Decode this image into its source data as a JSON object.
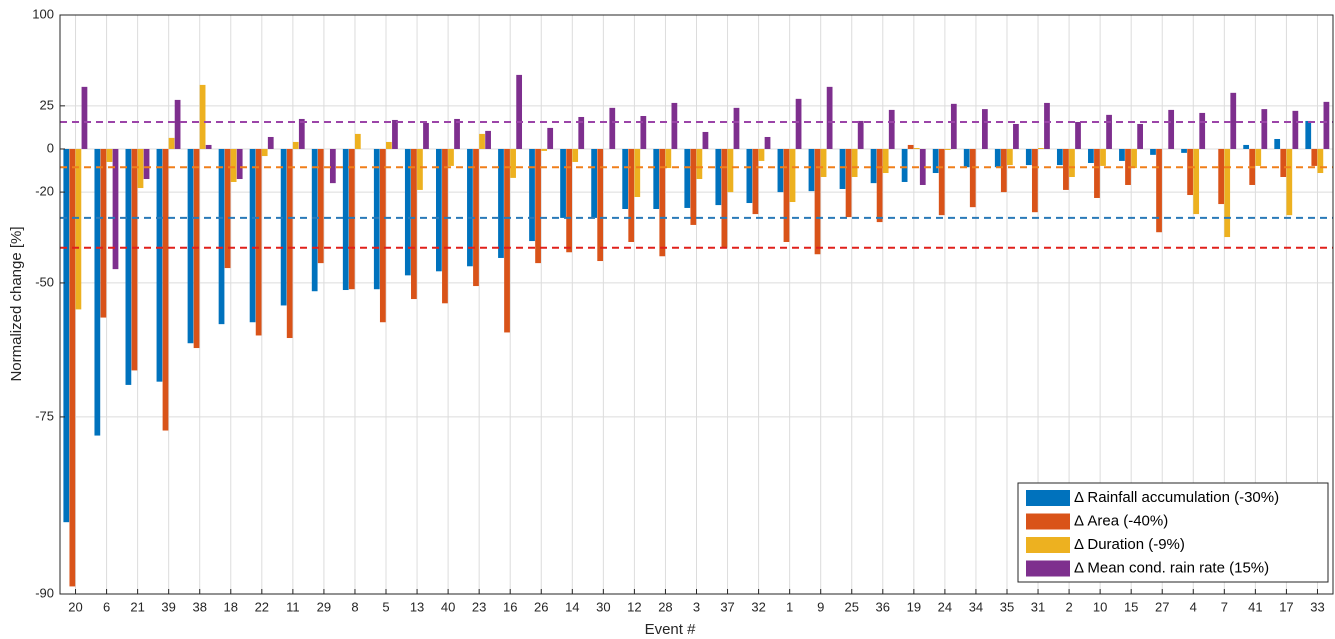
{
  "chart_data": {
    "type": "bar",
    "x_label": "Event #",
    "y_label": "Normalized change [%]",
    "y_scale": "log_ratio",
    "categories": [
      "20",
      "6",
      "21",
      "39",
      "38",
      "18",
      "22",
      "11",
      "29",
      "8",
      "5",
      "13",
      "40",
      "23",
      "16",
      "26",
      "14",
      "30",
      "12",
      "28",
      "3",
      "37",
      "32",
      "1",
      "9",
      "25",
      "36",
      "19",
      "24",
      "34",
      "35",
      "31",
      "2",
      "10",
      "15",
      "27",
      "4",
      "7",
      "41",
      "17",
      "33"
    ],
    "series": [
      {
        "name": "Δ Rainfall accumulation (-30%)",
        "color": "#0072bd",
        "reference": -30,
        "reference_color": "#2a7ab8",
        "values": [
          -85.5,
          -77.3,
          -70.5,
          -70,
          -63.4,
          -59.6,
          -59.2,
          -55.5,
          -52.1,
          -51.8,
          -51.6,
          -48,
          -46.9,
          -45.5,
          -43.1,
          -37.9,
          -30,
          -30,
          -26.7,
          -26.7,
          -26.3,
          -25.2,
          -24.4,
          -20,
          -19.6,
          -18.7,
          -16.2,
          -15.7,
          -11.7,
          -9,
          -9,
          -8,
          -8,
          -7,
          -6,
          -3,
          -2,
          0,
          2.1,
          5.3,
          15.6
        ]
      },
      {
        "name": "Δ Area (-40%)",
        "color": "#d95319",
        "reference": -40,
        "reference_color": "#e0201b",
        "values": [
          -89.6,
          -58.2,
          -68.2,
          -76.7,
          -64.3,
          -46,
          -61.9,
          -62.4,
          -44.6,
          -51.6,
          -59.2,
          -54,
          -55,
          -50.8,
          -61.3,
          -44.6,
          -41.4,
          -44,
          -38.2,
          -42.6,
          -32.5,
          -40,
          -28.6,
          -38.2,
          -42,
          -29.7,
          -31.5,
          2.1,
          -29,
          -26,
          -20,
          -27.9,
          -19.1,
          -22.4,
          -17,
          -35,
          -21.2,
          -24.8,
          -17,
          -13.5,
          -8.4
        ]
      },
      {
        "name": "Δ Duration (-9%)",
        "color": "#edb120",
        "reference": -9,
        "reference_color": "#f07f1a",
        "values": [
          -56.4,
          -6.5,
          -18.3,
          5.9,
          39.3,
          -15.7,
          -3.6,
          3.7,
          0,
          8.1,
          3.7,
          -19.1,
          -8.4,
          8.1,
          -13.9,
          -1,
          -6.5,
          0,
          -22,
          -9.4,
          -14.4,
          -20,
          -6,
          -24,
          -13.5,
          -13.5,
          -11.7,
          0.5,
          -0.5,
          0,
          -8,
          0.5,
          -13.5,
          -8.4,
          -9.4,
          0,
          -28.6,
          -36.6,
          -8.4,
          -29,
          -11.7
        ]
      },
      {
        "name": "Δ Mean cond. rain rate (15%)",
        "color": "#7e2f8e",
        "reference": 15,
        "reference_color": "#9b44a8",
        "values": [
          37.9,
          -46.3,
          -14.4,
          28.9,
          2.1,
          -14.4,
          6.4,
          16.8,
          -16.2,
          0,
          16.2,
          14.4,
          16.8,
          9.8,
          46.7,
          11.5,
          18,
          23.7,
          18.6,
          26.9,
          9.2,
          23.7,
          6.4,
          29.6,
          37.9,
          15.6,
          22.4,
          -17,
          26.3,
          22.9,
          13.8,
          26.9,
          15,
          19.3,
          13.8,
          22.4,
          20.5,
          33.7,
          22.9,
          21.8,
          27.6
        ]
      }
    ],
    "ylim": [
      -90,
      100
    ],
    "yticks": [
      -90,
      -75,
      -50,
      -20,
      0,
      25,
      100
    ],
    "grid": true,
    "legend": "lower right"
  }
}
